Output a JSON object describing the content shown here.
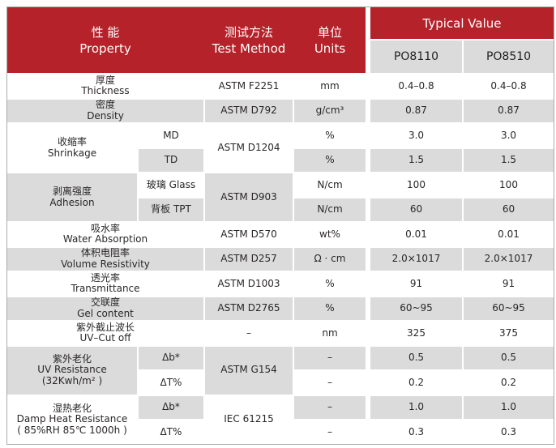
{
  "colors": {
    "header_red": "#B5222A",
    "row_gray": "#DBDBDB",
    "row_white": "#FFFFFF",
    "header_text": "#FFFFFF",
    "body_text": "#2A2627",
    "outer_border": "#ABABAB"
  },
  "header": {
    "property": {
      "zh": "性 能",
      "en": "Property"
    },
    "test_method": {
      "zh": "测试方法",
      "en": "Test Method"
    },
    "units": {
      "zh": "单位",
      "en": "Units"
    },
    "typical_value": "Typical Value",
    "products": [
      "PO8110",
      "PO8510"
    ]
  },
  "groups": [
    {
      "name": "thickness",
      "property": {
        "zh": "厚度",
        "en": "Thickness",
        "note": ""
      },
      "test_method": "ASTM F2251",
      "shade": "white",
      "rows": [
        {
          "sub": "",
          "unit": "mm",
          "values": [
            "0.4–0.8",
            "0.4–0.8"
          ],
          "shade": "white"
        }
      ]
    },
    {
      "name": "density",
      "property": {
        "zh": "密度",
        "en": "Density",
        "note": ""
      },
      "test_method": "ASTM D792",
      "shade": "gray",
      "rows": [
        {
          "sub": "",
          "unit": "g/cm³",
          "values": [
            "0.87",
            "0.87"
          ],
          "shade": "gray"
        }
      ]
    },
    {
      "name": "shrinkage",
      "property": {
        "zh": "收缩率",
        "en": "Shrinkage",
        "note": ""
      },
      "test_method": "ASTM D1204",
      "shade": "white",
      "rows": [
        {
          "sub": "MD",
          "unit": "%",
          "values": [
            "3.0",
            "3.0"
          ],
          "shade": "white"
        },
        {
          "sub": "TD",
          "unit": "%",
          "values": [
            "1.5",
            "1.5"
          ],
          "shade": "gray"
        }
      ]
    },
    {
      "name": "adhesion",
      "property": {
        "zh": "剥离强度",
        "en": "Adhesion",
        "note": ""
      },
      "test_method": "ASTM D903",
      "shade": "gray",
      "rows": [
        {
          "sub": "玻璃 Glass",
          "unit": "N/cm",
          "values": [
            "100",
            "100"
          ],
          "shade": "white"
        },
        {
          "sub": "背板 TPT",
          "unit": "N/cm",
          "values": [
            "60",
            "60"
          ],
          "shade": "gray"
        }
      ]
    },
    {
      "name": "water-absorption",
      "property": {
        "zh": "吸水率",
        "en": "Water Absorption",
        "note": ""
      },
      "test_method": "ASTM D570",
      "shade": "white",
      "rows": [
        {
          "sub": "",
          "unit": "wt%",
          "values": [
            "0.01",
            "0.01"
          ],
          "shade": "white"
        }
      ]
    },
    {
      "name": "volume-resistivity",
      "property": {
        "zh": "体积电阻率",
        "en": "Volume Resistivity",
        "note": ""
      },
      "test_method": "ASTM D257",
      "shade": "gray",
      "rows": [
        {
          "sub": "",
          "unit": "Ω · cm",
          "values": [
            "2.0×1017",
            "2.0×1017"
          ],
          "shade": "gray"
        }
      ]
    },
    {
      "name": "transmittance",
      "property": {
        "zh": "透光率",
        "en": "Transmittance",
        "note": ""
      },
      "test_method": "ASTM D1003",
      "shade": "white",
      "rows": [
        {
          "sub": "",
          "unit": "%",
          "values": [
            "91",
            "91"
          ],
          "shade": "white"
        }
      ]
    },
    {
      "name": "gel-content",
      "property": {
        "zh": "交联度",
        "en": "Gel content",
        "note": ""
      },
      "test_method": "ASTM D2765",
      "shade": "gray",
      "rows": [
        {
          "sub": "",
          "unit": "%",
          "values": [
            "60~95",
            "60~95"
          ],
          "shade": "gray"
        }
      ]
    },
    {
      "name": "uv-cut-off",
      "property": {
        "zh": "紫外截止波长",
        "en": "UV–Cut off",
        "note": ""
      },
      "test_method": "–",
      "shade": "white",
      "rows": [
        {
          "sub": "",
          "unit": "nm",
          "values": [
            "325",
            "375"
          ],
          "shade": "white"
        }
      ]
    },
    {
      "name": "uv-resistance",
      "property": {
        "zh": "紫外老化",
        "en": "UV Resistance",
        "note": "(32Kwh/m² )"
      },
      "test_method": "ASTM G154",
      "shade": "gray",
      "rows": [
        {
          "sub": "Δb*",
          "unit": "–",
          "values": [
            "0.5",
            "0.5"
          ],
          "shade": "gray"
        },
        {
          "sub": "ΔT%",
          "unit": "–",
          "values": [
            "0.2",
            "0.2"
          ],
          "shade": "white"
        }
      ]
    },
    {
      "name": "damp-heat-resistance",
      "property": {
        "zh": "湿热老化",
        "en": "Damp Heat Resistance",
        "note": "( 85%RH  85℃  1000h )"
      },
      "test_method": "IEC 61215",
      "shade": "white",
      "rows": [
        {
          "sub": "Δb*",
          "unit": "–",
          "values": [
            "1.0",
            "1.0"
          ],
          "shade": "gray"
        },
        {
          "sub": "ΔT%",
          "unit": "–",
          "values": [
            "0.3",
            "0.3"
          ],
          "shade": "white"
        }
      ]
    }
  ]
}
